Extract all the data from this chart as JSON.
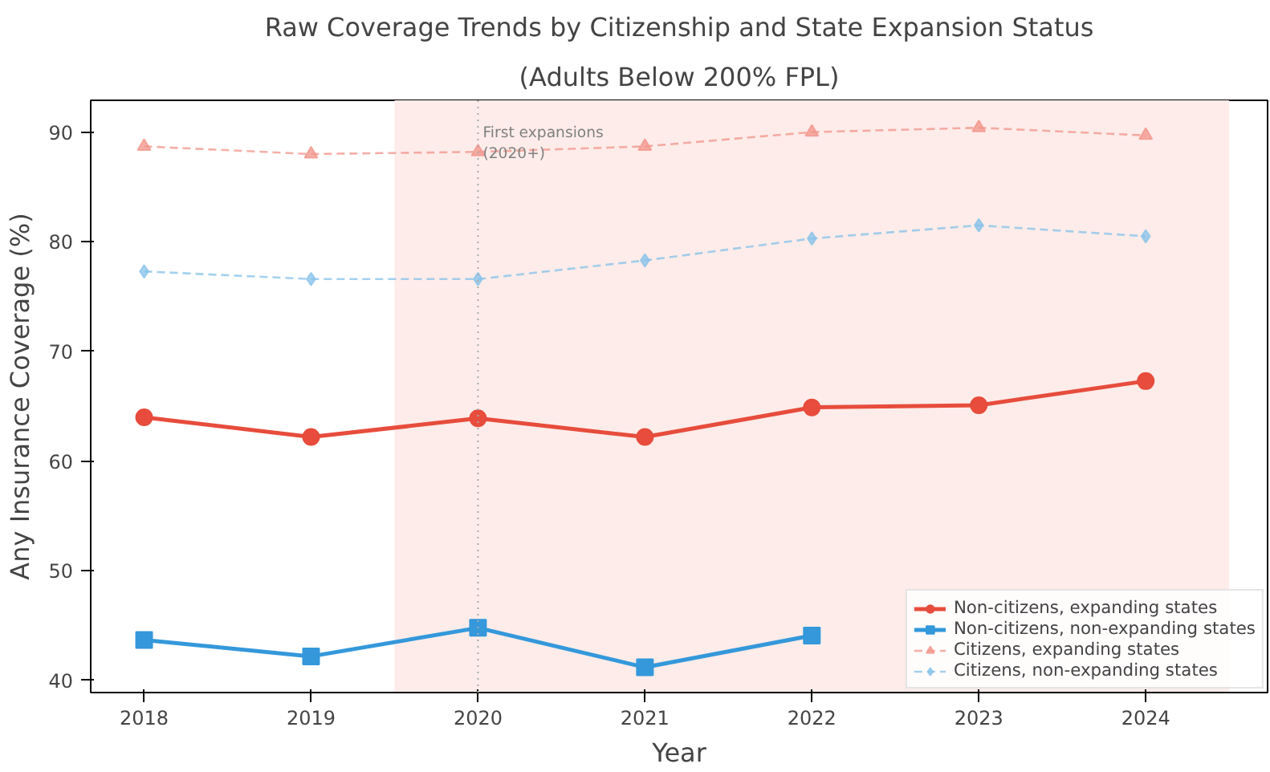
{
  "chart_data": {
    "type": "line",
    "title": "Raw Coverage Trends by Citizenship and State Expansion Status",
    "subtitle": "(Adults Below 200% FPL)",
    "xlabel": "Year",
    "ylabel": "Any Insurance Coverage (%)",
    "x": [
      2018,
      2019,
      2020,
      2021,
      2022,
      2023,
      2024
    ],
    "xlim": [
      2017.68,
      2024.73
    ],
    "ylim": [
      38.9,
      92.9
    ],
    "xticks": [
      2018,
      2019,
      2020,
      2021,
      2022,
      2023,
      2024
    ],
    "yticks": [
      40,
      50,
      60,
      70,
      80,
      90
    ],
    "series": [
      {
        "name": "Non-citizens, expanding states",
        "color": "#e74c3c",
        "values": [
          64.0,
          62.2,
          63.9,
          62.2,
          64.9,
          65.1,
          67.3
        ],
        "marker": "circle",
        "line_style": "solid"
      },
      {
        "name": "Non-citizens, non-expanding states",
        "color": "#3498db",
        "values": [
          43.7,
          42.2,
          44.8,
          41.2,
          44.1,
          null,
          null
        ],
        "marker": "square",
        "line_style": "solid"
      },
      {
        "name": "Citizens, expanding states",
        "color": "#f1948a",
        "values": [
          88.7,
          88.0,
          88.2,
          88.7,
          90.0,
          90.4,
          89.7
        ],
        "marker": "triangle",
        "line_style": "dashed"
      },
      {
        "name": "Citizens, non-expanding states",
        "color": "#85c1e9",
        "values": [
          77.3,
          76.6,
          76.6,
          78.3,
          80.3,
          81.5,
          80.5
        ],
        "marker": "diamond",
        "line_style": "dashed"
      }
    ],
    "ref_lines": [
      {
        "axis": "x",
        "value": 2020,
        "label": "First expansions\n(2020+)",
        "color": "#aaaaaa",
        "line_style": "dotted"
      }
    ],
    "bands": [
      {
        "axis": "x",
        "from": 2019.5,
        "to": 2024.5,
        "color": "#fdecea"
      }
    ],
    "legend": "bottom right",
    "grid": false
  }
}
